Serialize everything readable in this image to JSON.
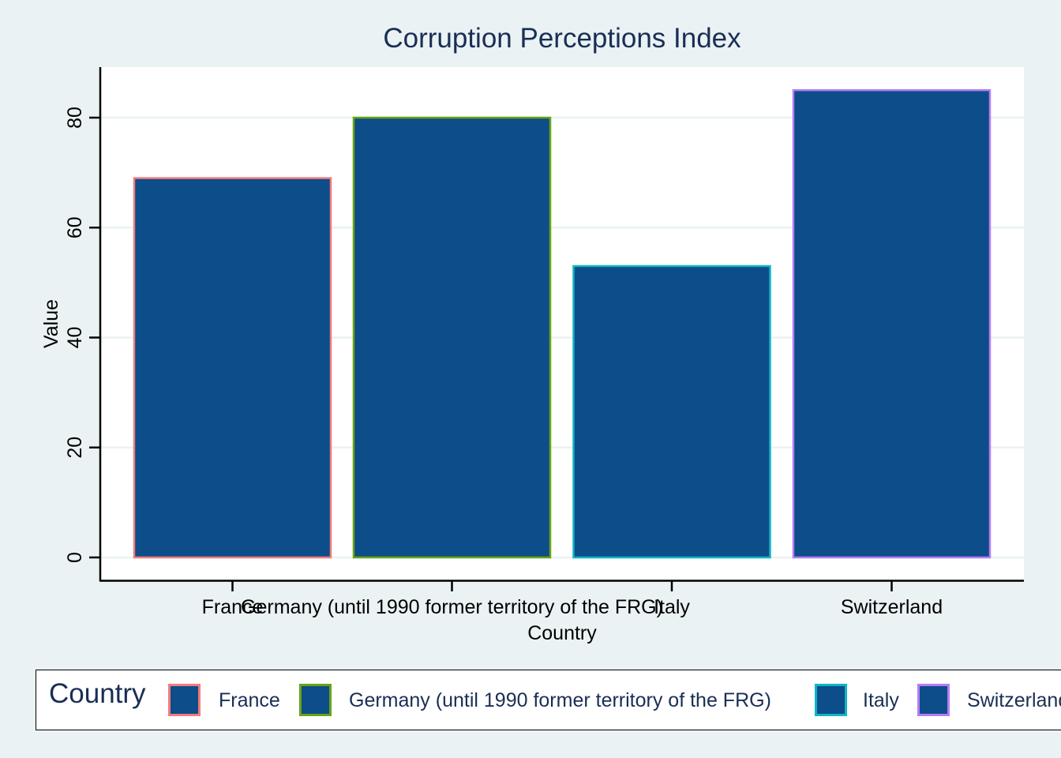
{
  "chart_data": {
    "type": "bar",
    "title": "Corruption Perceptions Index",
    "xlabel": "Country",
    "ylabel": "Value",
    "ylim": [
      0,
      89
    ],
    "yticks": [
      0,
      20,
      40,
      60,
      80
    ],
    "grid": true,
    "categories": [
      "France",
      "Germany (until 1990 former territory of the FRG)",
      "Italy",
      "Switzerland"
    ],
    "values": [
      69,
      80,
      53,
      85
    ],
    "bar_fill": "#0d4d89",
    "edge_colors": [
      "#f27c7c",
      "#6aa313",
      "#10b4c6",
      "#b57cf4"
    ],
    "legend": {
      "title": "Country",
      "position": "bottom",
      "entries": [
        "France",
        "Germany (until 1990 former territory of the FRG)",
        "Italy",
        "Switzerland"
      ]
    }
  },
  "colors": {
    "background": "#eaf2f3",
    "plot_background": "#ffffff",
    "text": "#1a2e55"
  }
}
